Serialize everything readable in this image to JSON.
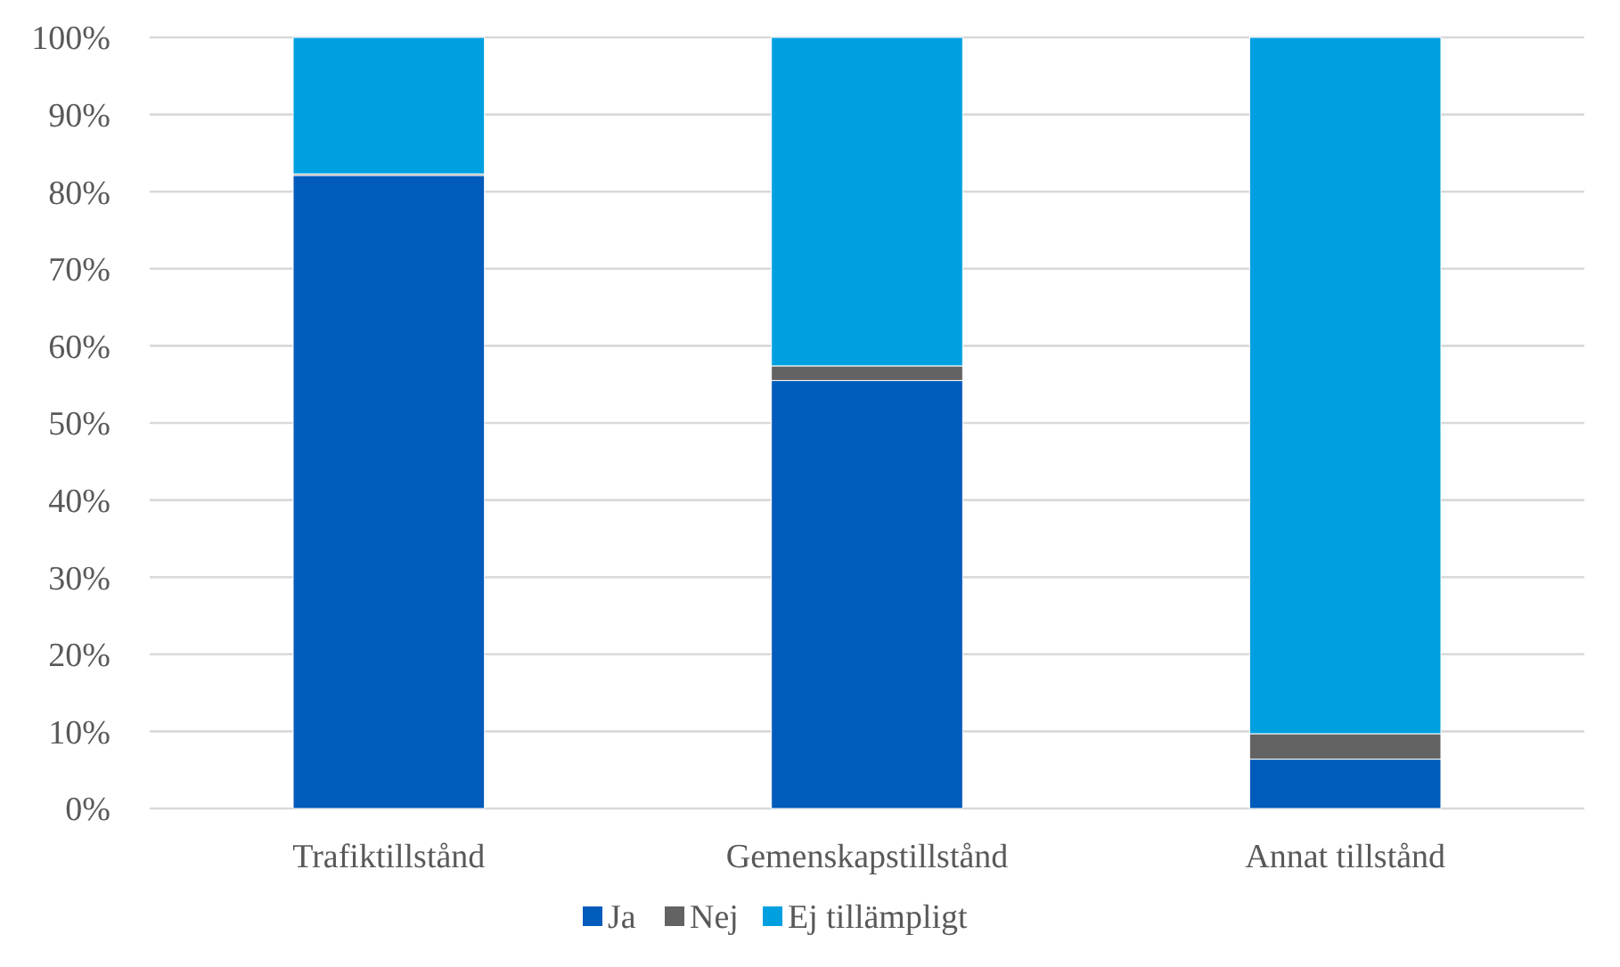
{
  "chart_data": {
    "type": "bar",
    "stacked": true,
    "categories": [
      "Trafiktillstånd",
      "Gemenskapstillstånd",
      "Annat tillstånd"
    ],
    "series": [
      {
        "name": "Ja",
        "color": "#005bbb",
        "values": [
          82.1,
          55.5,
          6.4
        ]
      },
      {
        "name": "Nej",
        "color": "#636363",
        "values": [
          0.2,
          1.9,
          3.3
        ]
      },
      {
        "name": "Ej tillämpligt",
        "color": "#00a0e0",
        "values": [
          17.7,
          42.6,
          90.3
        ]
      }
    ],
    "ylim": [
      0,
      100
    ],
    "yticks": [
      {
        "value": 0,
        "label": "0%"
      },
      {
        "value": 10,
        "label": "10%"
      },
      {
        "value": 20,
        "label": "20%"
      },
      {
        "value": 30,
        "label": "30%"
      },
      {
        "value": 40,
        "label": "40%"
      },
      {
        "value": 50,
        "label": "50%"
      },
      {
        "value": 60,
        "label": "60%"
      },
      {
        "value": 70,
        "label": "70%"
      },
      {
        "value": 80,
        "label": "80%"
      },
      {
        "value": 90,
        "label": "90%"
      },
      {
        "value": 100,
        "label": "100%"
      }
    ],
    "grid": "y",
    "legend": "bottom"
  }
}
